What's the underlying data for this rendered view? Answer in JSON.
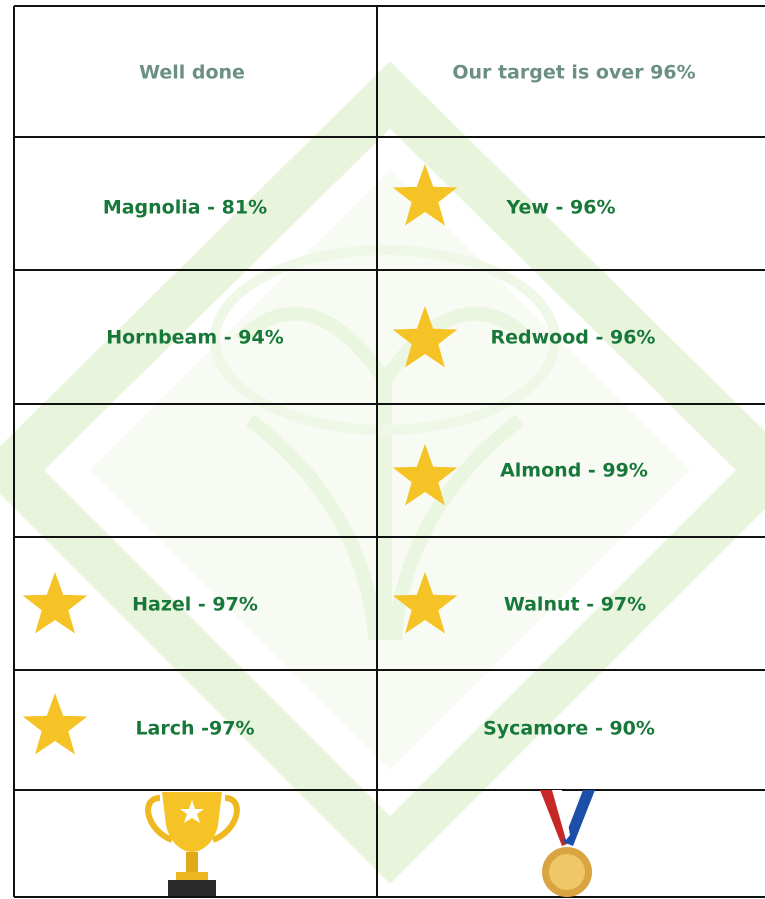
{
  "table": {
    "header": [
      "Well done",
      "Our target is over 96%"
    ],
    "rows": [
      [
        "Magnolia - 81%",
        "Yew - 96%"
      ],
      [
        "Hornbeam - 94%",
        "Redwood - 96%"
      ],
      [
        null,
        "Almond - 99%"
      ],
      [
        "Hazel - 97%",
        "Walnut - 97%"
      ],
      [
        "Larch -97%",
        "Sycamore - 90%"
      ]
    ]
  }
}
